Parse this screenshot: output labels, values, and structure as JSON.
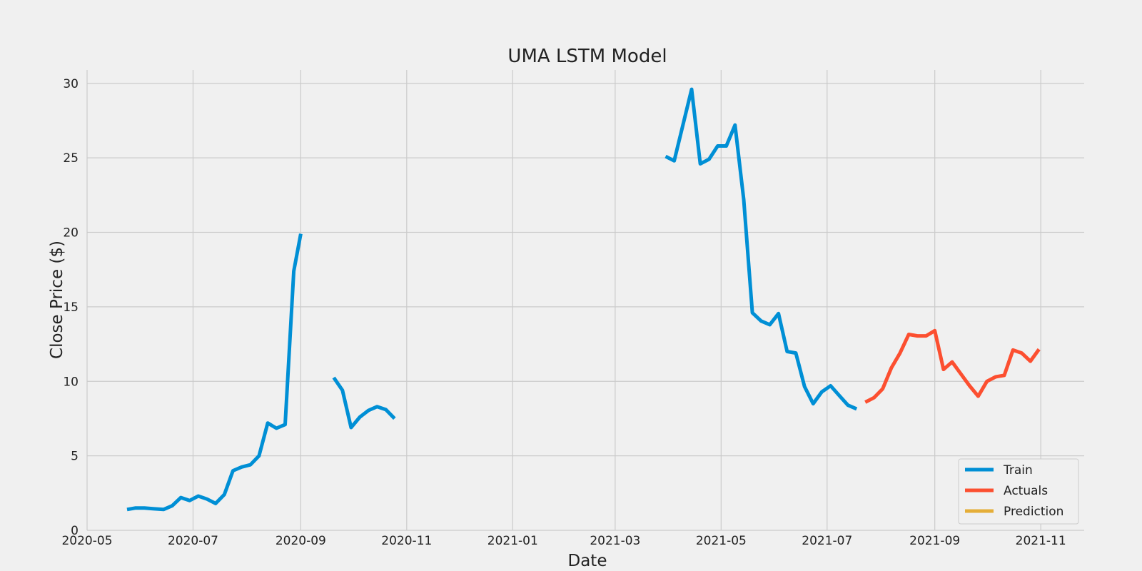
{
  "chart_data": {
    "type": "line",
    "title": "UMA LSTM Model",
    "xlabel": "Date",
    "ylabel": "Close Price ($)",
    "xlim": [
      "2020-05-01",
      "2021-11-26"
    ],
    "ylim": [
      0,
      30.9
    ],
    "x_ticks": [
      "2020-05",
      "2020-07",
      "2020-09",
      "2020-11",
      "2021-01",
      "2021-03",
      "2021-05",
      "2021-07",
      "2021-09",
      "2021-11"
    ],
    "y_ticks": [
      0,
      5,
      10,
      15,
      20,
      25,
      30
    ],
    "grid": true,
    "legend": "lower-right",
    "style": "fivethirtyeight",
    "series": [
      {
        "name": "Train",
        "color": "#008fd5",
        "segments": [
          [
            [
              "2020-05-24",
              1.4
            ],
            [
              "2020-05-29",
              1.5
            ],
            [
              "2020-06-03",
              1.5
            ],
            [
              "2020-06-08",
              1.45
            ],
            [
              "2020-06-14",
              1.4
            ],
            [
              "2020-06-19",
              1.65
            ],
            [
              "2020-06-24",
              2.2
            ],
            [
              "2020-06-29",
              2.0
            ],
            [
              "2020-07-04",
              2.3
            ],
            [
              "2020-07-09",
              2.1
            ],
            [
              "2020-07-14",
              1.8
            ],
            [
              "2020-07-19",
              2.4
            ],
            [
              "2020-07-24",
              4.0
            ],
            [
              "2020-07-29",
              4.25
            ],
            [
              "2020-08-03",
              4.4
            ],
            [
              "2020-08-08",
              5.0
            ],
            [
              "2020-08-13",
              7.2
            ],
            [
              "2020-08-18",
              6.85
            ],
            [
              "2020-08-23",
              7.1
            ],
            [
              "2020-08-28",
              17.4
            ],
            [
              "2020-09-01",
              19.9
            ]
          ],
          [
            [
              "2020-09-20",
              10.25
            ],
            [
              "2020-09-25",
              9.4
            ],
            [
              "2020-09-30",
              6.9
            ],
            [
              "2020-10-05",
              7.6
            ],
            [
              "2020-10-10",
              8.05
            ],
            [
              "2020-10-15",
              8.3
            ],
            [
              "2020-10-20",
              8.1
            ],
            [
              "2020-10-25",
              7.5
            ]
          ],
          [
            [
              "2021-03-30",
              25.1
            ],
            [
              "2021-04-04",
              24.8
            ],
            [
              "2021-04-14",
              29.6
            ],
            [
              "2021-04-19",
              24.6
            ],
            [
              "2021-04-24",
              24.9
            ],
            [
              "2021-04-29",
              25.8
            ],
            [
              "2021-05-04",
              25.8
            ],
            [
              "2021-05-09",
              27.2
            ],
            [
              "2021-05-14",
              22.2
            ],
            [
              "2021-05-19",
              14.6
            ],
            [
              "2021-05-24",
              14.05
            ],
            [
              "2021-05-29",
              13.8
            ],
            [
              "2021-06-03",
              14.55
            ],
            [
              "2021-06-08",
              12.0
            ],
            [
              "2021-06-13",
              11.9
            ],
            [
              "2021-06-18",
              9.65
            ],
            [
              "2021-06-23",
              8.5
            ],
            [
              "2021-06-28",
              9.3
            ],
            [
              "2021-07-03",
              9.7
            ],
            [
              "2021-07-08",
              9.05
            ],
            [
              "2021-07-13",
              8.4
            ],
            [
              "2021-07-18",
              8.15
            ]
          ]
        ]
      },
      {
        "name": "Actuals",
        "color": "#fc4f30",
        "segments": [
          [
            [
              "2021-07-23",
              8.6
            ],
            [
              "2021-07-28",
              8.9
            ],
            [
              "2021-08-02",
              9.5
            ],
            [
              "2021-08-07",
              10.9
            ],
            [
              "2021-08-12",
              11.9
            ],
            [
              "2021-08-17",
              13.15
            ],
            [
              "2021-08-22",
              13.05
            ],
            [
              "2021-08-27",
              13.05
            ],
            [
              "2021-09-01",
              13.4
            ],
            [
              "2021-09-06",
              10.8
            ],
            [
              "2021-09-11",
              11.3
            ],
            [
              "2021-09-16",
              10.5
            ],
            [
              "2021-09-21",
              9.7
            ],
            [
              "2021-09-26",
              9.0
            ],
            [
              "2021-10-01",
              10.0
            ],
            [
              "2021-10-06",
              10.3
            ],
            [
              "2021-10-11",
              10.4
            ],
            [
              "2021-10-16",
              12.1
            ],
            [
              "2021-10-21",
              11.9
            ],
            [
              "2021-10-26",
              11.35
            ],
            [
              "2021-10-31",
              12.15
            ]
          ]
        ]
      },
      {
        "name": "Prediction",
        "color": "#e5ae38",
        "segments": []
      }
    ]
  }
}
